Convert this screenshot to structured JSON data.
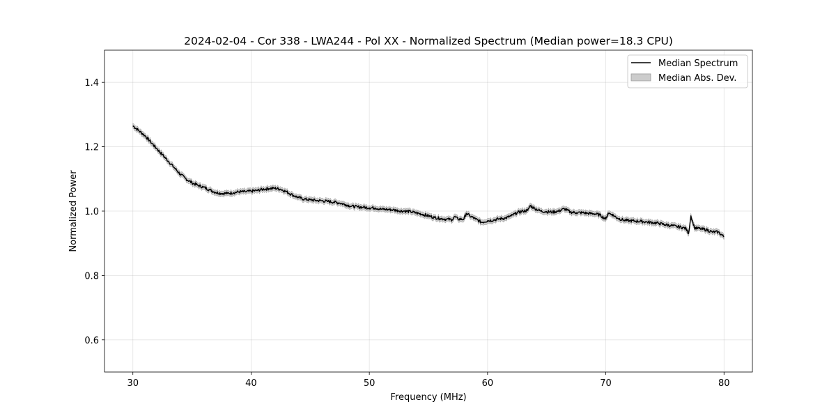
{
  "chart_data": {
    "type": "line",
    "title": "2024-02-04 - Cor 338 - LWA244 - Pol XX - Normalized Spectrum (Median power=18.3 CPU)",
    "xlabel": "Frequency (MHz)",
    "ylabel": "Normalized Power",
    "xlim": [
      27.6,
      82.4
    ],
    "ylim": [
      0.5,
      1.5
    ],
    "xticks": [
      30,
      40,
      50,
      60,
      70,
      80
    ],
    "yticks": [
      0.6,
      0.8,
      1.0,
      1.2,
      1.4
    ],
    "grid": true,
    "legend_position": "top-right",
    "series": [
      {
        "name": "Median Spectrum",
        "kind": "line",
        "color": "#000000",
        "x": [
          30,
          30.5,
          31,
          31.5,
          32,
          32.5,
          33,
          33.5,
          34,
          34.5,
          35,
          35.5,
          36,
          36.5,
          37,
          37.5,
          38,
          38.5,
          39,
          39.5,
          40,
          40.5,
          41,
          41.5,
          42,
          42.5,
          43,
          43.5,
          44,
          44.5,
          45,
          45.5,
          46,
          46.5,
          47,
          47.5,
          48,
          48.5,
          49,
          49.5,
          50,
          50.5,
          51,
          51.5,
          52,
          52.5,
          53,
          53.5,
          54,
          54.5,
          55,
          55.5,
          56,
          56.5,
          57,
          57.2,
          57.5,
          58,
          58.2,
          58.5,
          59,
          59.5,
          60,
          60.5,
          61,
          61.5,
          62,
          62.5,
          63,
          63.4,
          63.6,
          64,
          64.5,
          65,
          65.5,
          66,
          66.5,
          67,
          67.5,
          68,
          68.5,
          69,
          69.5,
          70,
          70.2,
          70.5,
          71,
          71.5,
          72,
          72.5,
          73,
          73.5,
          74,
          74.5,
          75,
          75.5,
          76,
          76.5,
          76.8,
          77,
          77.2,
          77.5,
          78,
          78.5,
          79,
          79.5,
          80
        ],
        "y": [
          1.265,
          1.25,
          1.235,
          1.215,
          1.195,
          1.175,
          1.155,
          1.135,
          1.115,
          1.1,
          1.088,
          1.08,
          1.074,
          1.066,
          1.058,
          1.055,
          1.055,
          1.057,
          1.06,
          1.06,
          1.062,
          1.064,
          1.068,
          1.07,
          1.071,
          1.068,
          1.06,
          1.05,
          1.042,
          1.037,
          1.035,
          1.033,
          1.032,
          1.03,
          1.028,
          1.025,
          1.02,
          1.015,
          1.013,
          1.012,
          1.01,
          1.01,
          1.006,
          1.005,
          1.004,
          1.001,
          1.0,
          0.998,
          0.994,
          0.99,
          0.985,
          0.98,
          0.977,
          0.975,
          0.973,
          0.983,
          0.975,
          0.975,
          0.993,
          0.985,
          0.975,
          0.965,
          0.97,
          0.972,
          0.976,
          0.978,
          0.985,
          0.995,
          1.0,
          1.002,
          1.017,
          1.008,
          1.0,
          0.998,
          0.997,
          1.0,
          1.007,
          0.997,
          0.995,
          0.995,
          0.993,
          0.992,
          0.988,
          0.975,
          0.994,
          0.99,
          0.978,
          0.972,
          0.97,
          0.969,
          0.968,
          0.966,
          0.964,
          0.962,
          0.958,
          0.955,
          0.952,
          0.949,
          0.945,
          0.93,
          0.985,
          0.948,
          0.945,
          0.942,
          0.935,
          0.935,
          0.92
        ]
      },
      {
        "name": "Median Abs. Dev.",
        "kind": "band",
        "color": "#aaaaaa",
        "half_width": 0.008
      }
    ]
  }
}
